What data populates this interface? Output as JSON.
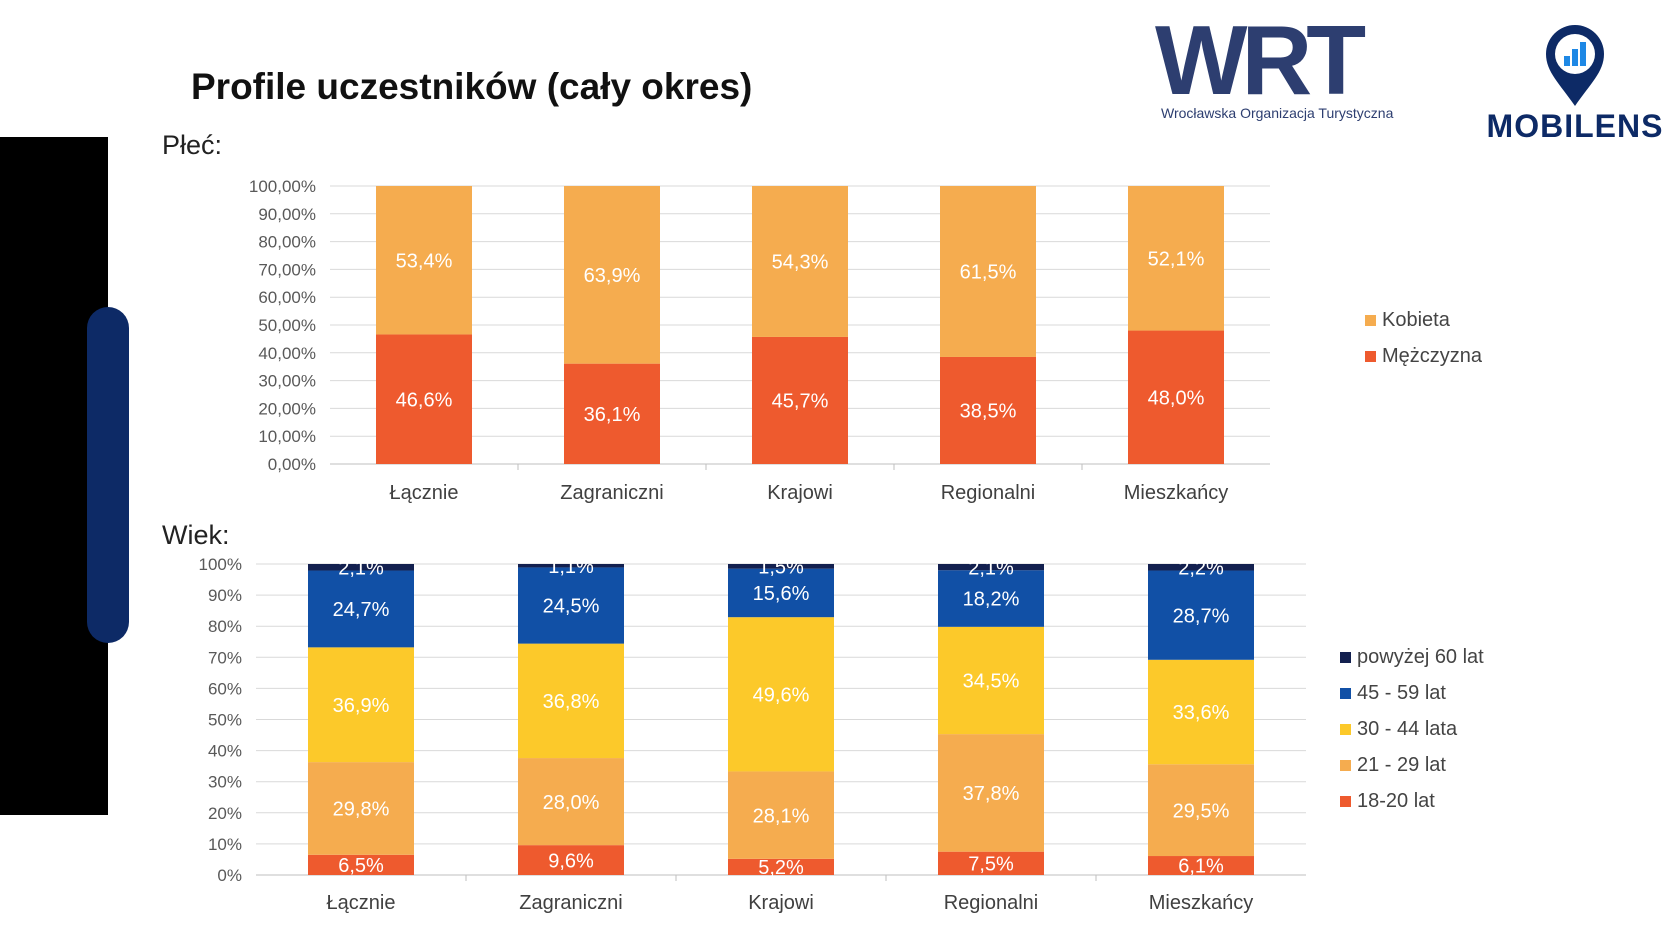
{
  "title": "Profile uczestników (cały okres)",
  "logos": {
    "wrt_letters": "WRT",
    "wrt_subtitle": "Wrocławska Organizacja Turystyczna",
    "mobilens": "MOBILENS"
  },
  "colors": {
    "mezczyzna": "#ee5a2e",
    "kobieta": "#f5ac4f",
    "age_18_20": "#ee5a2e",
    "age_21_29": "#f5ac4f",
    "age_30_44": "#fcc92a",
    "age_45_59": "#1150a6",
    "age_60_plus": "#13204f",
    "wrt_navy": "#2d3e70",
    "mobilens_blue": "#0d2a66"
  },
  "chart_data": [
    {
      "id": "plec",
      "section_label": "Płeć:",
      "type": "bar",
      "stacked": true,
      "categories": [
        "Łącznie",
        "Zagraniczni",
        "Krajowi",
        "Regionalni",
        "Mieszkańcy"
      ],
      "series": [
        {
          "name": "Mężczyzna",
          "values": [
            46.6,
            36.1,
            45.7,
            38.5,
            48.0
          ],
          "labels": [
            "46,6%",
            "36,1%",
            "45,7%",
            "38,5%",
            "48,0%"
          ],
          "color": "#ee5a2e"
        },
        {
          "name": "Kobieta",
          "values": [
            53.4,
            63.9,
            54.3,
            61.5,
            52.1
          ],
          "labels": [
            "53,4%",
            "63,9%",
            "54,3%",
            "61,5%",
            "52,1%"
          ],
          "color": "#f5ac4f"
        }
      ],
      "ylim": [
        0,
        100
      ],
      "yticks": [
        "0,00%",
        "10,00%",
        "20,00%",
        "30,00%",
        "40,00%",
        "50,00%",
        "60,00%",
        "70,00%",
        "80,00%",
        "90,00%",
        "100,00%"
      ],
      "legend": [
        "Kobieta",
        "Mężczyzna"
      ],
      "legend_position": "right",
      "grid": true
    },
    {
      "id": "wiek",
      "section_label": "Wiek:",
      "type": "bar",
      "stacked": true,
      "categories": [
        "Łącznie",
        "Zagraniczni",
        "Krajowi",
        "Regionalni",
        "Mieszkańcy"
      ],
      "series": [
        {
          "name": "18-20 lat",
          "values": [
            6.5,
            9.6,
            5.2,
            7.5,
            6.1
          ],
          "labels": [
            "6,5%",
            "9,6%",
            "5,2%",
            "7,5%",
            "6,1%"
          ],
          "color": "#ee5a2e"
        },
        {
          "name": "21 - 29 lat",
          "values": [
            29.8,
            28.0,
            28.1,
            37.8,
            29.5
          ],
          "labels": [
            "29,8%",
            "28,0%",
            "28,1%",
            "37,8%",
            "29,5%"
          ],
          "color": "#f5ac4f"
        },
        {
          "name": "30 - 44 lata",
          "values": [
            36.9,
            36.8,
            49.6,
            34.5,
            33.6
          ],
          "labels": [
            "36,9%",
            "36,8%",
            "49,6%",
            "34,5%",
            "33,6%"
          ],
          "color": "#fcc92a"
        },
        {
          "name": "45 - 59 lat",
          "values": [
            24.7,
            24.5,
            15.6,
            18.2,
            28.7
          ],
          "labels": [
            "24,7%",
            "24,5%",
            "15,6%",
            "18,2%",
            "28,7%"
          ],
          "color": "#1150a6"
        },
        {
          "name": "powyżej  60 lat",
          "values": [
            2.1,
            1.1,
            1.5,
            2.1,
            2.2
          ],
          "labels": [
            "2,1%",
            "1,1%",
            "1,5%",
            "2,1%",
            "2,2%"
          ],
          "color": "#13204f"
        }
      ],
      "ylim": [
        0,
        100
      ],
      "yticks": [
        "0%",
        "10%",
        "20%",
        "30%",
        "40%",
        "50%",
        "60%",
        "70%",
        "80%",
        "90%",
        "100%"
      ],
      "legend": [
        "powyżej  60 lat",
        "45 - 59 lat",
        "30 - 44 lata",
        "21 - 29 lat",
        "18-20 lat"
      ],
      "legend_position": "right",
      "grid": true
    }
  ]
}
